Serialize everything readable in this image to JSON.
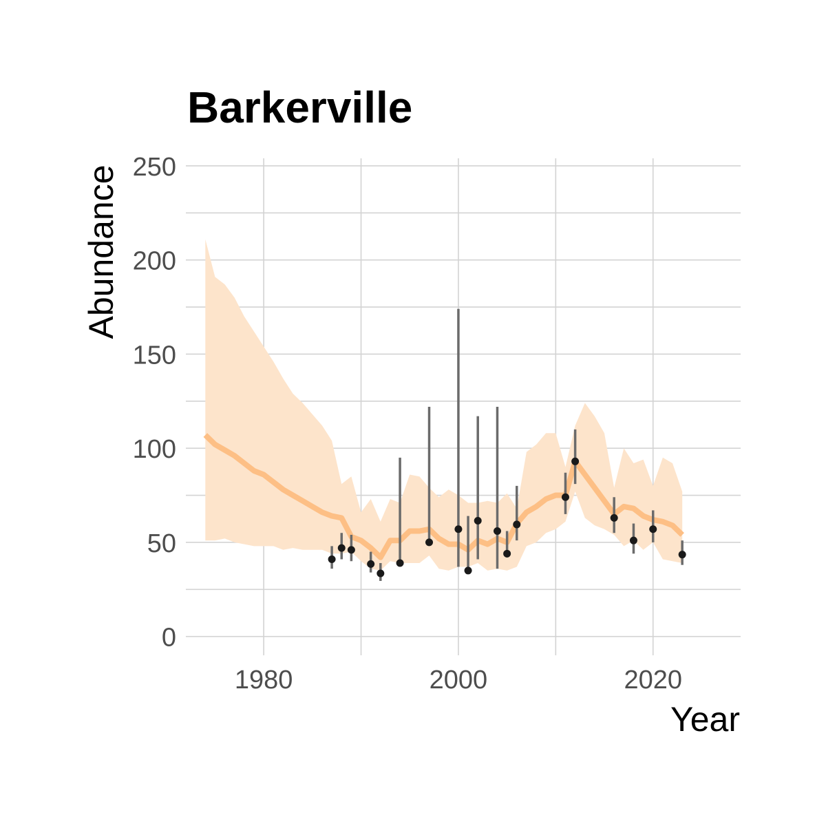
{
  "chart_data": {
    "type": "line",
    "title": "Barkerville",
    "xlabel": "Year",
    "ylabel": "Abundance",
    "xlim": [
      1972,
      2029
    ],
    "ylim": [
      -10,
      254
    ],
    "x_ticks": [
      1980,
      2000,
      2020
    ],
    "x_tick_labels": [
      "1980",
      "2000",
      "2020"
    ],
    "x_minor_ticks": [
      1990,
      2010
    ],
    "y_ticks": [
      0,
      50,
      100,
      150,
      200,
      250
    ],
    "y_tick_labels": [
      "0",
      "50",
      "100",
      "150",
      "200",
      "250"
    ],
    "y_minor_ticks": [
      25,
      75,
      125,
      175,
      225
    ],
    "grid": true,
    "legend": "none",
    "colors": {
      "trend_line": "#fdbf85",
      "ribbon": "#fde4cb",
      "points": "#1a1a1a",
      "error_bars": "#6b6b6b"
    },
    "trend": {
      "x": [
        1974,
        1975,
        1976,
        1977,
        1978,
        1979,
        1980,
        1981,
        1982,
        1983,
        1984,
        1985,
        1986,
        1987,
        1988,
        1989,
        1990,
        1991,
        1992,
        1993,
        1994,
        1995,
        1996,
        1997,
        1998,
        1999,
        2000,
        2001,
        2002,
        2003,
        2004,
        2005,
        2006,
        2007,
        2008,
        2009,
        2010,
        2011,
        2012,
        2013,
        2014,
        2015,
        2016,
        2017,
        2018,
        2019,
        2020,
        2021,
        2022,
        2023
      ],
      "y": [
        107,
        102,
        99,
        96,
        92,
        88,
        86,
        82,
        78,
        75,
        72,
        69,
        66,
        64,
        63,
        53,
        51,
        47,
        42,
        51,
        51,
        56,
        56,
        57,
        52,
        49,
        49,
        46,
        51,
        49,
        52,
        50,
        60,
        66,
        69,
        73,
        75,
        75,
        93,
        86,
        79,
        72,
        65,
        69,
        68,
        64,
        62,
        61,
        59,
        54
      ],
      "lower": [
        51,
        51,
        52,
        50,
        49,
        48,
        48,
        48,
        46,
        47,
        46,
        46,
        46,
        44,
        44,
        45,
        40,
        36,
        35,
        40,
        39,
        39,
        39,
        43,
        36,
        35,
        37,
        37,
        39,
        35,
        36,
        35,
        37,
        48,
        50,
        55,
        57,
        61,
        77,
        63,
        59,
        57,
        54,
        48,
        51,
        46,
        50,
        41,
        40,
        39
      ],
      "upper": [
        211,
        191,
        187,
        180,
        170,
        162,
        154,
        146,
        137,
        129,
        124,
        118,
        112,
        104,
        81,
        85,
        66,
        73,
        61,
        73,
        71,
        86,
        85,
        79,
        74,
        78,
        75,
        71,
        71,
        72,
        71,
        76,
        68,
        98,
        102,
        108,
        108,
        90,
        112,
        124,
        117,
        108,
        79,
        100,
        92,
        94,
        80,
        95,
        92,
        77
      ]
    },
    "observations": {
      "x": [
        1987,
        1988,
        1989,
        1991,
        1992,
        1994,
        1997,
        2000,
        2001,
        2002,
        2004,
        2005,
        2006,
        2011,
        2012,
        2016,
        2018,
        2020,
        2023
      ],
      "y": [
        41,
        47,
        46,
        38.5,
        33.5,
        39,
        50,
        57,
        35,
        61.5,
        56,
        44,
        59.5,
        74,
        93,
        63,
        51,
        57,
        43.5
      ],
      "lower": [
        36,
        41,
        40,
        34,
        29.5,
        38,
        49,
        37,
        35,
        41,
        36,
        42,
        51,
        65,
        81,
        55,
        44,
        50,
        38
      ],
      "upper": [
        48,
        55,
        54,
        45,
        39,
        95,
        122,
        174,
        64,
        117,
        122,
        56,
        80,
        87,
        110,
        74,
        60,
        67,
        51
      ]
    }
  }
}
